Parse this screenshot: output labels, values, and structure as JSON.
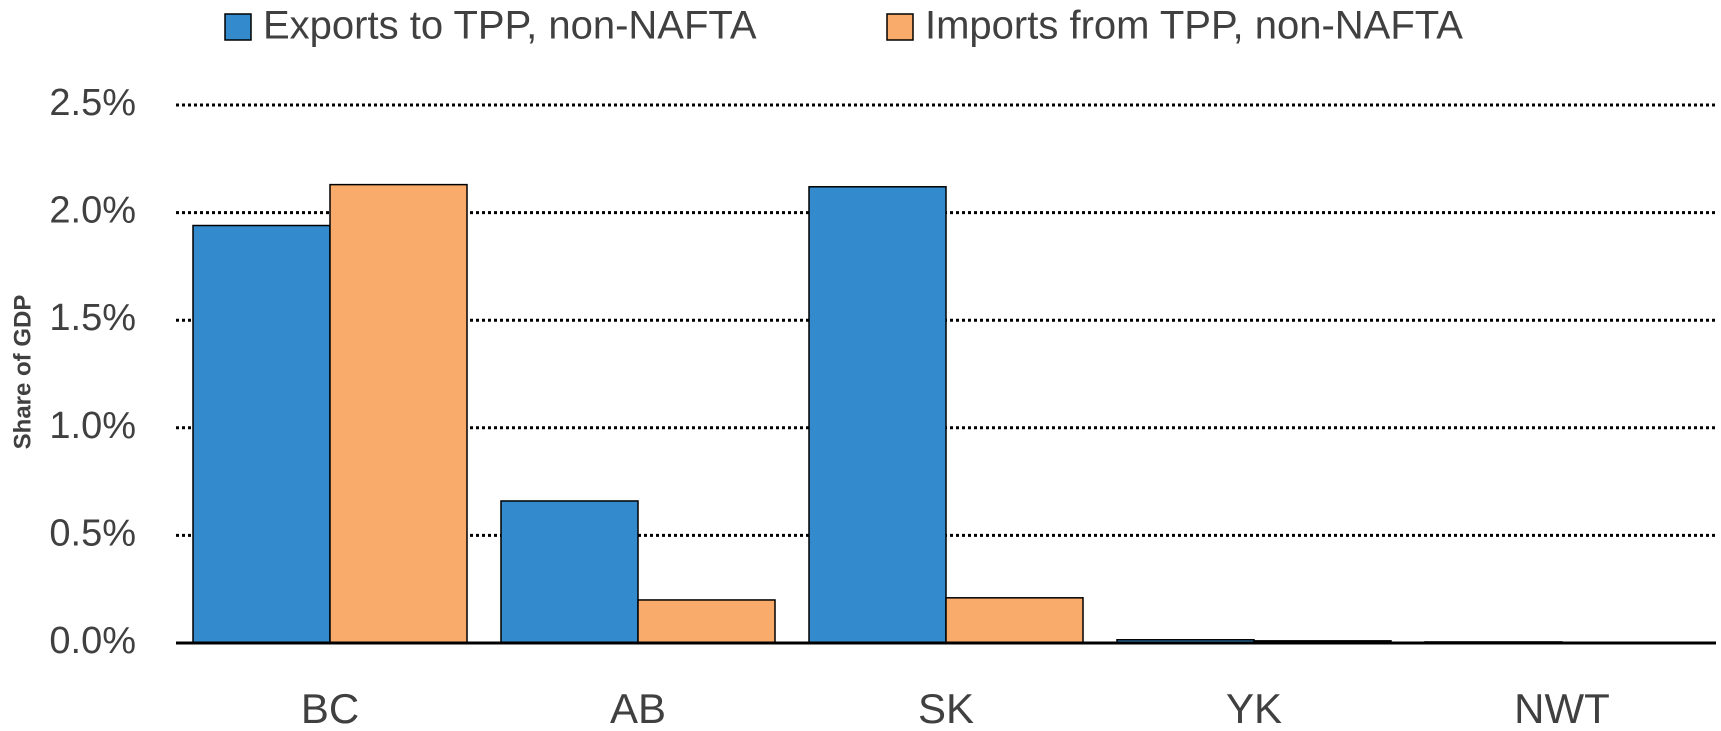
{
  "chart_data": {
    "type": "bar",
    "y_label": "Share of GDP",
    "categories": [
      "BC",
      "AB",
      "SK",
      "YK",
      "NWT"
    ],
    "series": [
      {
        "name": "Exports to TPP, non-NAFTA",
        "color": "#338bcd",
        "values": [
          1.94,
          0.66,
          2.12,
          0.015,
          0.005
        ]
      },
      {
        "name": "Imports from TPP, non-NAFTA",
        "color": "#f8ab6b",
        "values": [
          2.13,
          0.2,
          0.21,
          0.01,
          0.002
        ]
      }
    ],
    "ylim": [
      0,
      2.5
    ],
    "yticks": [
      {
        "value": 0,
        "label": "0.0%"
      },
      {
        "value": 0.5,
        "label": "0.5%"
      },
      {
        "value": 1,
        "label": "1.0%"
      },
      {
        "value": 1.5,
        "label": "1.5%"
      },
      {
        "value": 2,
        "label": "2.0%"
      },
      {
        "value": 2.5,
        "label": "2.5%"
      }
    ],
    "grid": true,
    "legend": "top"
  }
}
